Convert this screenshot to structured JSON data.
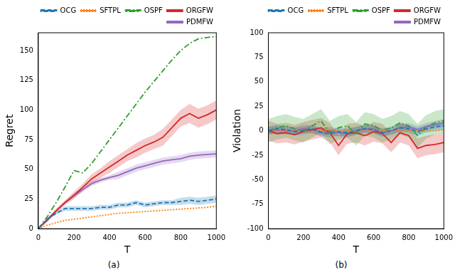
{
  "chart_data": [
    {
      "type": "line",
      "caption": "(a)",
      "x_label": "T",
      "y_label": "Regret",
      "x": [
        0,
        50,
        100,
        150,
        200,
        250,
        300,
        350,
        400,
        450,
        500,
        550,
        600,
        650,
        700,
        750,
        800,
        850,
        900,
        950,
        1000
      ],
      "xlim": [
        0,
        1000
      ],
      "xticks": [
        0,
        200,
        400,
        600,
        800,
        1000
      ],
      "ylim": [
        0,
        165
      ],
      "yticks": [
        0,
        25,
        50,
        75,
        100,
        125,
        150
      ],
      "grid": false,
      "legend": "top-right",
      "series": [
        {
          "name": "OCG",
          "color": "#1f77b4",
          "line_style": "dashed",
          "values": [
            0,
            8,
            13,
            17,
            17,
            17,
            17,
            18,
            18,
            20,
            20,
            22,
            20,
            21,
            22,
            22,
            23,
            24,
            23,
            24,
            25
          ],
          "error": [
            0,
            1,
            1,
            2,
            2,
            2,
            2,
            2,
            2,
            2,
            2,
            2,
            2,
            2,
            2,
            2,
            3,
            3,
            3,
            3,
            3
          ]
        },
        {
          "name": "SFTPL",
          "color": "#ff7f0e",
          "line_style": "dotted",
          "values": [
            0,
            3,
            5,
            7,
            8,
            9,
            10,
            11,
            12,
            13,
            13.5,
            14,
            14.5,
            15,
            15.5,
            16,
            16.5,
            17,
            17.5,
            18,
            19
          ]
        },
        {
          "name": "OSPF",
          "color": "#2ca02c",
          "line_style": "dashdot",
          "values": [
            0,
            10,
            22,
            35,
            49,
            47,
            55,
            65,
            75,
            85,
            95,
            105,
            115,
            124,
            133,
            142,
            150,
            156,
            160,
            161,
            162
          ]
        },
        {
          "name": "ORGFW",
          "color": "#d62728",
          "line_style": "solid",
          "values": [
            0,
            7,
            15,
            22,
            28,
            35,
            42,
            47,
            52,
            57,
            62,
            66,
            70,
            73,
            77,
            85,
            93,
            97,
            93,
            96,
            100
          ],
          "error": [
            0,
            1,
            2,
            2,
            3,
            3,
            4,
            4,
            5,
            5,
            5,
            6,
            6,
            6,
            7,
            7,
            7,
            8,
            8,
            8,
            8
          ]
        },
        {
          "name": "PDMFW",
          "color": "#9467bd",
          "line_style": "solid",
          "values": [
            0,
            8,
            15,
            22,
            28,
            33,
            38,
            41,
            43,
            45,
            48,
            51,
            53,
            55,
            57,
            58,
            59,
            61,
            62,
            62.5,
            63
          ],
          "error": [
            0,
            1,
            1,
            1,
            2,
            2,
            2,
            2,
            2,
            3,
            3,
            3,
            3,
            3,
            3,
            3,
            3,
            3,
            3,
            3,
            3
          ]
        }
      ]
    },
    {
      "type": "line",
      "caption": "(b)",
      "x_label": "T",
      "y_label": "Violation",
      "x": [
        0,
        50,
        100,
        150,
        200,
        250,
        300,
        350,
        400,
        450,
        500,
        550,
        600,
        650,
        700,
        750,
        800,
        850,
        900,
        950,
        1000
      ],
      "xlim": [
        0,
        1000
      ],
      "xticks": [
        0,
        200,
        400,
        600,
        800,
        1000
      ],
      "ylim": [
        -100,
        100
      ],
      "yticks": [
        -100,
        -75,
        -50,
        -25,
        0,
        25,
        50,
        75,
        100
      ],
      "grid": false,
      "legend": "top-right",
      "series": [
        {
          "name": "OCG",
          "color": "#1f77b4",
          "line_style": "dashed",
          "values": [
            0,
            2,
            1,
            -1,
            0,
            2,
            -2,
            -3,
            -1,
            -2,
            0,
            2,
            1,
            -2,
            0,
            3,
            2,
            -1,
            2,
            4,
            5
          ],
          "error": [
            4,
            4,
            4,
            4,
            4,
            4,
            4,
            4,
            4,
            4,
            4,
            4,
            4,
            4,
            4,
            4,
            4,
            4,
            4,
            4,
            4
          ]
        },
        {
          "name": "SFTPL",
          "color": "#ff7f0e",
          "line_style": "dotted",
          "values": [
            0,
            1,
            0,
            1,
            0,
            -1,
            0,
            1,
            0,
            0,
            -1,
            0,
            1,
            0,
            1,
            0,
            0,
            1,
            0,
            0,
            1
          ]
        },
        {
          "name": "OSPF",
          "color": "#2ca02c",
          "line_style": "dashdot",
          "values": [
            0,
            3,
            5,
            2,
            0,
            5,
            10,
            -2,
            3,
            5,
            -3,
            7,
            5,
            0,
            3,
            8,
            5,
            -5,
            4,
            8,
            10
          ],
          "error": [
            12,
            12,
            12,
            12,
            12,
            12,
            12,
            12,
            12,
            12,
            12,
            12,
            12,
            12,
            12,
            12,
            12,
            12,
            12,
            12,
            12
          ]
        },
        {
          "name": "ORGFW",
          "color": "#d62728",
          "line_style": "solid",
          "values": [
            0,
            -3,
            -2,
            -4,
            -1,
            1,
            3,
            -2,
            -15,
            -3,
            -2,
            -5,
            -1,
            -3,
            -12,
            -2,
            -5,
            -18,
            -15,
            -14,
            -12
          ],
          "error": [
            10,
            10,
            10,
            10,
            10,
            10,
            10,
            10,
            10,
            10,
            10,
            10,
            10,
            10,
            10,
            10,
            10,
            10,
            10,
            10,
            10
          ]
        },
        {
          "name": "PDMFW",
          "color": "#9467bd",
          "line_style": "solid",
          "values": [
            0,
            1,
            0,
            0,
            2,
            1,
            -1,
            0,
            -2,
            -3,
            0,
            2,
            2,
            -2,
            0,
            3,
            4,
            1,
            4,
            6,
            8
          ],
          "error": [
            4,
            4,
            4,
            4,
            4,
            4,
            4,
            4,
            4,
            4,
            4,
            4,
            4,
            4,
            4,
            4,
            4,
            4,
            4,
            4,
            4
          ]
        }
      ]
    }
  ]
}
